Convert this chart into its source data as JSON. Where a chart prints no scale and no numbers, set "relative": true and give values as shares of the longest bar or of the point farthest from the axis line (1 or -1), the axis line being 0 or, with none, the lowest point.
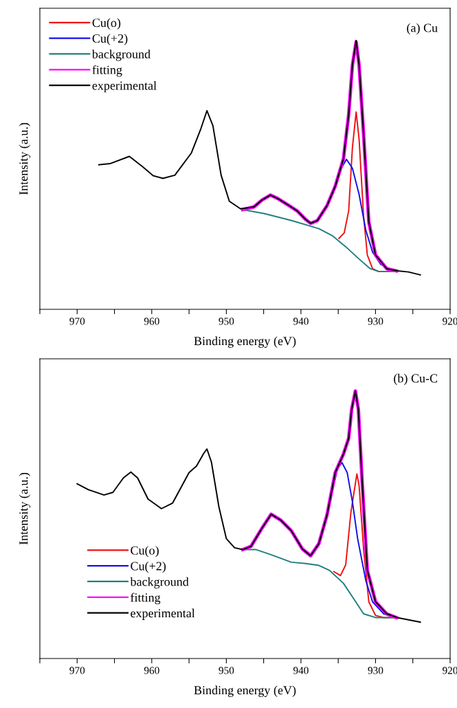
{
  "chart_data": [
    {
      "type": "line",
      "relative": true,
      "xlabel": "Binding energy (eV)",
      "ylabel": "Intensity (a.u.)",
      "annotations": [
        "(a) Cu"
      ],
      "legend": "top left",
      "tick_labels": "x",
      "grid": false,
      "xlim": [
        975,
        920
      ],
      "xticks": [
        {
          "value": 975,
          "label": null
        },
        970,
        {
          "value": 965,
          "label": null
        },
        960,
        {
          "value": 955,
          "label": null
        },
        950,
        {
          "value": 945,
          "label": null
        },
        940,
        {
          "value": 935,
          "label": null
        },
        930,
        {
          "value": 925,
          "label": null
        },
        920
      ],
      "series": [
        {
          "name": "Cu(o)",
          "color": "#ee1111",
          "x": [
            934.9,
            934.2,
            933.6,
            933.1,
            932.6,
            932.2,
            931.6,
            931.1,
            930.4,
            929.6,
            927.4
          ],
          "values": [
            0.264,
            0.284,
            0.366,
            0.601,
            0.734,
            0.632,
            0.346,
            0.202,
            0.151,
            0.141,
            0.141
          ]
        },
        {
          "name": "Cu(+2)",
          "color": "#1010ee",
          "x": [
            936.5,
            935.4,
            934.7,
            933.9,
            933.1,
            932.2,
            931.3,
            930.4,
            929.3,
            927.4
          ],
          "values": [
            0.386,
            0.458,
            0.519,
            0.558,
            0.525,
            0.427,
            0.294,
            0.213,
            0.167,
            0.141
          ]
        },
        {
          "name": "background",
          "color": "#1f7f7f",
          "x": [
            947.8,
            944.9,
            941.2,
            937.6,
            935.8,
            934.0,
            932.2,
            930.7,
            929.6,
            927.4
          ],
          "values": [
            0.371,
            0.356,
            0.33,
            0.3,
            0.274,
            0.233,
            0.187,
            0.151,
            0.141,
            0.141
          ]
        },
        {
          "name": "fitting",
          "color": "#ff00ff",
          "x": [
            947.8,
            946.3,
            945.2,
            944.1,
            943.1,
            941.6,
            940.5,
            939.4,
            938.7,
            937.8,
            936.5,
            935.4,
            934.3,
            933.6,
            933.1,
            932.6,
            932.2,
            931.6,
            930.9,
            930.0,
            928.5,
            927.2
          ],
          "values": [
            0.371,
            0.381,
            0.407,
            0.425,
            0.412,
            0.386,
            0.366,
            0.335,
            0.32,
            0.33,
            0.386,
            0.458,
            0.56,
            0.724,
            0.908,
            0.995,
            0.908,
            0.652,
            0.325,
            0.202,
            0.151,
            0.143
          ]
        },
        {
          "name": "experimental",
          "color": "#000000",
          "x": [
            967.1,
            965.6,
            963.0,
            961.2,
            959.8,
            958.5,
            956.9,
            954.7,
            953.4,
            952.6,
            951.8,
            950.7,
            949.6,
            948.1,
            946.3,
            945.2,
            944.1,
            943.1,
            941.6,
            940.5,
            939.4,
            938.7,
            937.8,
            936.5,
            935.4,
            934.3,
            933.6,
            933.1,
            932.6,
            932.2,
            931.6,
            930.9,
            930.0,
            928.5,
            927.1,
            925.6,
            924.0
          ],
          "values": [
            0.538,
            0.542,
            0.569,
            0.53,
            0.497,
            0.487,
            0.499,
            0.581,
            0.673,
            0.739,
            0.683,
            0.499,
            0.402,
            0.374,
            0.381,
            0.407,
            0.425,
            0.412,
            0.386,
            0.366,
            0.335,
            0.32,
            0.33,
            0.386,
            0.458,
            0.56,
            0.724,
            0.908,
            1.0,
            0.908,
            0.652,
            0.325,
            0.202,
            0.151,
            0.143,
            0.139,
            0.128
          ]
        }
      ]
    },
    {
      "type": "line",
      "relative": true,
      "xlabel": "Binding energy (eV)",
      "ylabel": "Intensity (a.u.)",
      "annotations": [
        "(b) Cu-C"
      ],
      "legend": "bottom left",
      "tick_labels": "x",
      "grid": false,
      "xlim": [
        975,
        920
      ],
      "xticks": [
        {
          "value": 975,
          "label": null
        },
        970,
        {
          "value": 965,
          "label": null
        },
        960,
        {
          "value": 955,
          "label": null
        },
        950,
        {
          "value": 945,
          "label": null
        },
        940,
        {
          "value": 935,
          "label": null
        },
        930,
        {
          "value": 925,
          "label": null
        },
        920
      ],
      "series": [
        {
          "name": "Cu(o)",
          "color": "#ee1111",
          "x": [
            935.6,
            934.7,
            934.0,
            933.3,
            932.5,
            932.2,
            931.6,
            930.9,
            930.0,
            928.9,
            927.4
          ],
          "values": [
            0.325,
            0.31,
            0.35,
            0.547,
            0.69,
            0.645,
            0.409,
            0.212,
            0.161,
            0.153,
            0.153
          ]
        },
        {
          "name": "Cu(+2)",
          "color": "#1010ee",
          "x": [
            936.5,
            935.1,
            934.5,
            933.8,
            933.1,
            932.4,
            931.3,
            930.4,
            928.9,
            927.4
          ],
          "values": [
            0.537,
            0.709,
            0.732,
            0.695,
            0.586,
            0.448,
            0.291,
            0.212,
            0.167,
            0.153
          ]
        },
        {
          "name": "background",
          "color": "#1f7f7f",
          "x": [
            947.8,
            946.0,
            944.1,
            941.3,
            939.4,
            937.6,
            936.2,
            934.3,
            932.9,
            931.6,
            930.0,
            927.4
          ],
          "values": [
            0.407,
            0.407,
            0.389,
            0.36,
            0.355,
            0.348,
            0.33,
            0.281,
            0.222,
            0.167,
            0.153,
            0.153
          ]
        },
        {
          "name": "fitting",
          "color": "#ff00ff",
          "x": [
            947.8,
            946.7,
            945.2,
            944.0,
            942.7,
            941.3,
            939.8,
            938.7,
            937.6,
            936.5,
            935.4,
            934.3,
            933.6,
            933.2,
            932.7,
            932.3,
            931.8,
            931.1,
            930.0,
            928.5,
            927.2
          ],
          "values": [
            0.407,
            0.419,
            0.488,
            0.539,
            0.517,
            0.478,
            0.409,
            0.384,
            0.429,
            0.537,
            0.695,
            0.764,
            0.823,
            0.931,
            1.0,
            0.931,
            0.665,
            0.33,
            0.212,
            0.167,
            0.153
          ]
        },
        {
          "name": "experimental",
          "color": "#000000",
          "x": [
            970.0,
            968.5,
            966.4,
            965.2,
            963.8,
            962.8,
            961.9,
            960.5,
            958.7,
            957.2,
            955.0,
            954.0,
            953.0,
            952.6,
            952.0,
            951.0,
            950.0,
            948.9,
            947.8,
            946.7,
            945.2,
            944.0,
            942.7,
            941.3,
            939.8,
            938.7,
            937.6,
            936.5,
            935.4,
            934.3,
            933.6,
            933.2,
            932.7,
            932.3,
            931.8,
            931.1,
            930.0,
            928.5,
            927.1,
            924.0
          ],
          "values": [
            0.653,
            0.631,
            0.611,
            0.621,
            0.675,
            0.697,
            0.675,
            0.596,
            0.56,
            0.581,
            0.695,
            0.719,
            0.768,
            0.783,
            0.734,
            0.567,
            0.448,
            0.414,
            0.407,
            0.419,
            0.488,
            0.539,
            0.517,
            0.478,
            0.409,
            0.384,
            0.429,
            0.537,
            0.695,
            0.764,
            0.823,
            0.931,
            1.0,
            0.931,
            0.665,
            0.33,
            0.212,
            0.167,
            0.153,
            0.136
          ]
        }
      ]
    }
  ]
}
